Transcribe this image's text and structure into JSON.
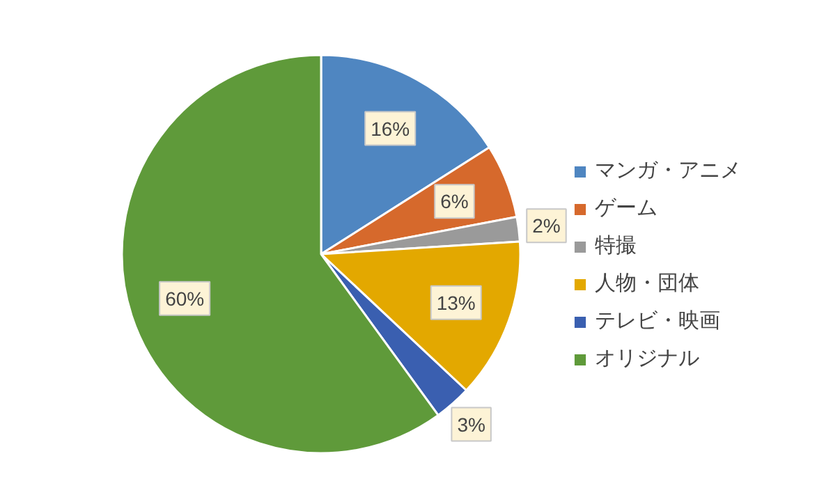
{
  "chart_data": {
    "type": "pie",
    "categories": [
      "マンガ・アニメ",
      "ゲーム",
      "特撮",
      "人物・団体",
      "テレビ・映画",
      "オリジナル"
    ],
    "values": [
      16,
      6,
      2,
      13,
      3,
      60
    ],
    "colors": [
      "#4f86c1",
      "#d6692c",
      "#9a9a9a",
      "#e3a800",
      "#3a5fb0",
      "#5f9a3a"
    ],
    "value_labels": [
      "16%",
      "6%",
      "2%",
      "13%",
      "3%",
      "60%"
    ],
    "legend": "right"
  }
}
